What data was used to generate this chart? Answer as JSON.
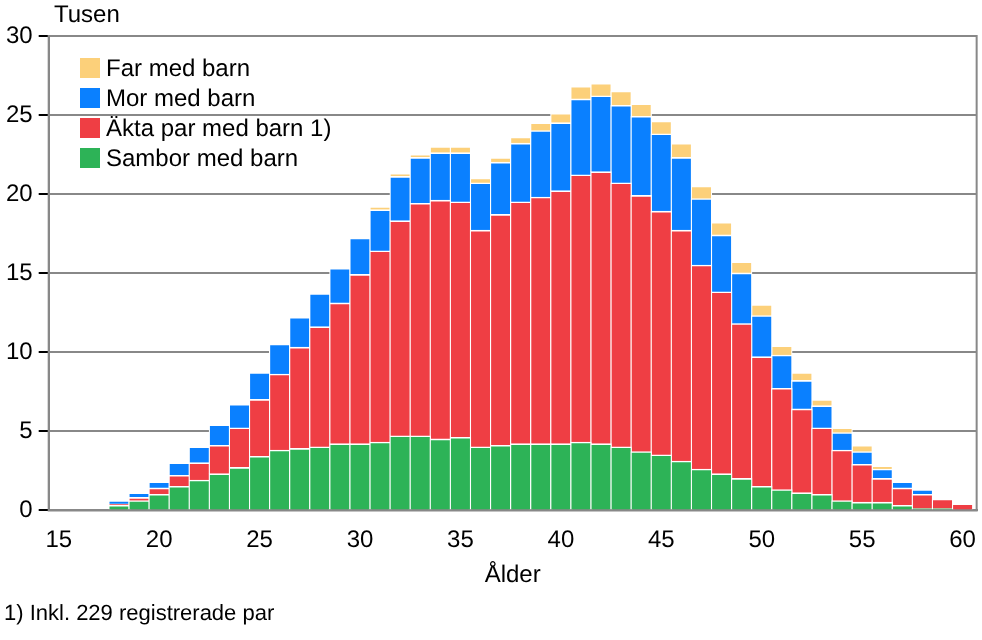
{
  "chart_data": {
    "type": "bar",
    "stacked": true,
    "ylabel": "Tusen",
    "xlabel": "Ålder",
    "annotations": [
      "1) Inkl. 229 registrerade par"
    ],
    "x": [
      18,
      19,
      20,
      21,
      22,
      23,
      24,
      25,
      26,
      27,
      28,
      29,
      30,
      31,
      32,
      33,
      34,
      35,
      36,
      37,
      38,
      39,
      40,
      41,
      42,
      43,
      44,
      45,
      46,
      47,
      48,
      49,
      50,
      51,
      52,
      53,
      54,
      55,
      56,
      57,
      58,
      59,
      60
    ],
    "series": [
      {
        "name": "Sambor med barn",
        "color": "#2db357",
        "values": [
          0.3,
          0.6,
          1.0,
          1.5,
          1.9,
          2.3,
          2.7,
          3.4,
          3.8,
          3.9,
          4.0,
          4.2,
          4.2,
          4.3,
          4.7,
          4.7,
          4.5,
          4.6,
          4.0,
          4.1,
          4.2,
          4.2,
          4.2,
          4.3,
          4.2,
          4.0,
          3.7,
          3.5,
          3.1,
          2.6,
          2.3,
          2.0,
          1.5,
          1.3,
          1.1,
          1.0,
          0.6,
          0.5,
          0.5,
          0.3,
          0.1,
          0.1,
          0
        ]
      },
      {
        "name": "Äkta par med barn 1)",
        "color": "#ef3e44",
        "values": [
          0.1,
          0.2,
          0.4,
          0.7,
          1.1,
          1.8,
          2.5,
          3.6,
          4.8,
          6.4,
          7.6,
          8.9,
          10.7,
          12.1,
          13.6,
          14.7,
          15.1,
          14.9,
          13.7,
          14.6,
          15.3,
          15.6,
          16.0,
          16.9,
          17.2,
          16.7,
          16.2,
          15.4,
          14.6,
          12.9,
          11.5,
          9.8,
          8.2,
          6.4,
          5.3,
          4.2,
          3.2,
          2.4,
          1.5,
          1.1,
          0.9,
          0.6,
          0.4
        ]
      },
      {
        "name": "Mor med barn",
        "color": "#0a80ff",
        "values": [
          0.2,
          0.3,
          0.4,
          0.8,
          1.0,
          1.3,
          1.5,
          1.7,
          1.9,
          1.9,
          2.1,
          2.2,
          2.3,
          2.6,
          2.8,
          2.9,
          3.0,
          3.1,
          3.0,
          3.3,
          3.7,
          4.2,
          4.3,
          4.8,
          4.8,
          4.9,
          5.0,
          4.9,
          4.6,
          4.2,
          3.6,
          3.2,
          2.6,
          2.1,
          1.8,
          1.4,
          1.1,
          0.8,
          0.6,
          0.4,
          0.3,
          0,
          0
        ]
      },
      {
        "name": "Far med barn",
        "color": "#fcd07a",
        "values": [
          0,
          0,
          0,
          0,
          0,
          0,
          0,
          0,
          0,
          0,
          0,
          0,
          0,
          0.2,
          0.2,
          0.2,
          0.4,
          0.4,
          0.3,
          0.3,
          0.4,
          0.5,
          0.6,
          0.8,
          0.8,
          0.9,
          0.8,
          0.8,
          0.9,
          0.8,
          0.8,
          0.7,
          0.7,
          0.6,
          0.5,
          0.4,
          0.3,
          0.4,
          0.2,
          0,
          0,
          0,
          0
        ]
      }
    ],
    "xlim": [
      14.5,
      60.7
    ],
    "xticks": [
      15,
      20,
      25,
      30,
      35,
      40,
      45,
      50,
      55,
      60
    ],
    "ylim": [
      0,
      30
    ],
    "yticks": [
      0,
      5,
      10,
      15,
      20,
      25,
      30
    ],
    "grid": "y",
    "legend": "top left"
  }
}
